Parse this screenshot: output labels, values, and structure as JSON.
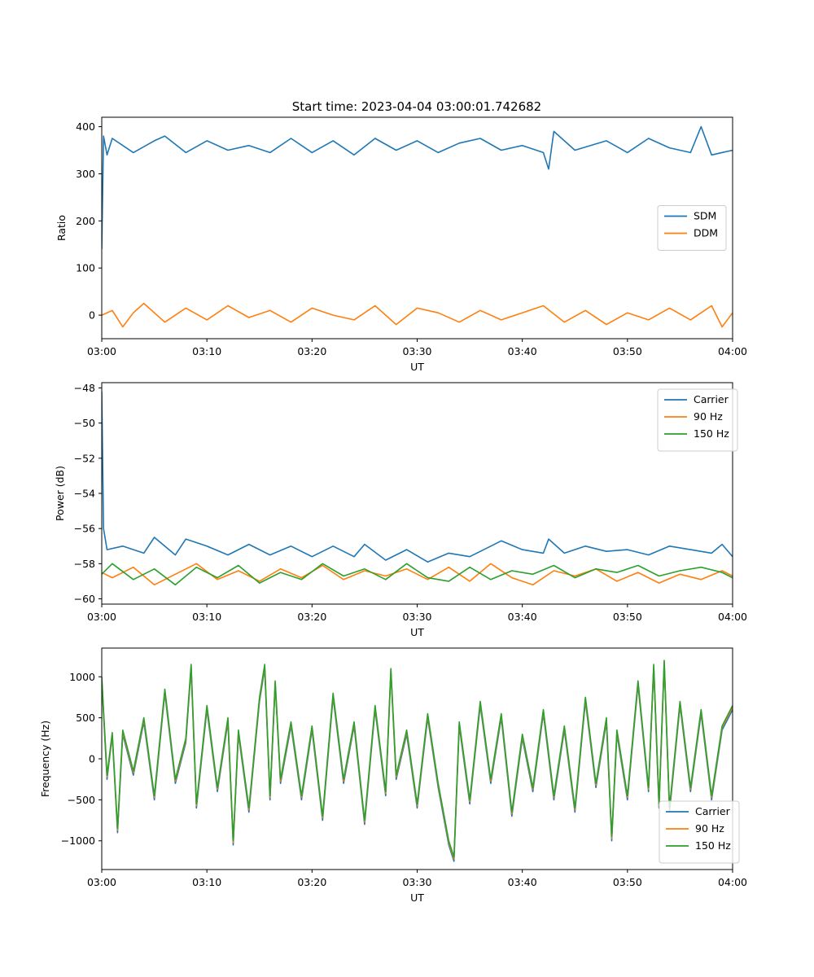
{
  "figure": {
    "title": "Start time: 2023-04-04 03:00:01.742682"
  },
  "colors": {
    "blue": "#1f77b4",
    "orange": "#ff7f0e",
    "green": "#2ca02c"
  },
  "chart_data": [
    {
      "type": "line",
      "title": "Start time: 2023-04-04 03:00:01.742682",
      "xlabel": "UT",
      "ylabel": "Ratio",
      "xlim": [
        "03:00",
        "04:00"
      ],
      "ylim": [
        -50,
        420
      ],
      "x_ticks": [
        "03:00",
        "03:10",
        "03:20",
        "03:30",
        "03:40",
        "03:50",
        "04:00"
      ],
      "y_ticks": [
        0,
        100,
        200,
        300,
        400
      ],
      "y_tick_labels": [
        "0",
        "100",
        "200",
        "300",
        "400"
      ],
      "legend": "center-right",
      "grid": false,
      "series": [
        {
          "name": "SDM",
          "color": "#1f77b4",
          "x": [
            "03:00",
            "03:00:10",
            "03:00:30",
            "03:01",
            "03:03",
            "03:05",
            "03:06",
            "03:08",
            "03:10",
            "03:12",
            "03:14",
            "03:16",
            "03:18",
            "03:20",
            "03:22",
            "03:24",
            "03:26",
            "03:28",
            "03:30",
            "03:32",
            "03:34",
            "03:36",
            "03:38",
            "03:40",
            "03:42",
            "03:42:30",
            "03:43",
            "03:45",
            "03:48",
            "03:50",
            "03:52",
            "03:54",
            "03:56",
            "03:57",
            "03:58",
            "04:00"
          ],
          "values": [
            140,
            380,
            340,
            375,
            345,
            370,
            380,
            345,
            370,
            350,
            360,
            345,
            375,
            345,
            370,
            340,
            375,
            350,
            370,
            345,
            365,
            375,
            350,
            360,
            345,
            310,
            390,
            350,
            370,
            345,
            375,
            355,
            345,
            400,
            340,
            350
          ]
        },
        {
          "name": "DDM",
          "color": "#ff7f0e",
          "x": [
            "03:00",
            "03:01",
            "03:02",
            "03:03",
            "03:04",
            "03:06",
            "03:08",
            "03:10",
            "03:12",
            "03:14",
            "03:16",
            "03:18",
            "03:20",
            "03:22",
            "03:24",
            "03:26",
            "03:28",
            "03:30",
            "03:32",
            "03:34",
            "03:36",
            "03:38",
            "03:40",
            "03:42",
            "03:44",
            "03:46",
            "03:48",
            "03:50",
            "03:52",
            "03:54",
            "03:56",
            "03:58",
            "03:59",
            "04:00"
          ],
          "values": [
            0,
            10,
            -25,
            5,
            25,
            -15,
            15,
            -10,
            20,
            -5,
            10,
            -15,
            15,
            0,
            -10,
            20,
            -20,
            15,
            5,
            -15,
            10,
            -10,
            5,
            20,
            -15,
            10,
            -20,
            5,
            -10,
            15,
            -10,
            20,
            -25,
            5
          ]
        }
      ]
    },
    {
      "type": "line",
      "title": "",
      "xlabel": "UT",
      "ylabel": "Power (dB)",
      "xlim": [
        "03:00",
        "04:00"
      ],
      "ylim": [
        -60.3,
        -47.7
      ],
      "x_ticks": [
        "03:00",
        "03:10",
        "03:20",
        "03:30",
        "03:40",
        "03:50",
        "04:00"
      ],
      "y_ticks": [
        -60,
        -58,
        -56,
        -54,
        -52,
        -50,
        -48
      ],
      "y_tick_labels": [
        "−60",
        "−58",
        "−56",
        "−54",
        "−52",
        "−50",
        "−48"
      ],
      "legend": "top-right",
      "grid": false,
      "series": [
        {
          "name": "Carrier",
          "color": "#1f77b4",
          "x": [
            "03:00",
            "03:00:10",
            "03:00:30",
            "03:02",
            "03:04",
            "03:05",
            "03:07",
            "03:08",
            "03:10",
            "03:12",
            "03:14",
            "03:16",
            "03:18",
            "03:20",
            "03:22",
            "03:24",
            "03:25",
            "03:27",
            "03:29",
            "03:31",
            "03:33",
            "03:35",
            "03:37",
            "03:38",
            "03:40",
            "03:42",
            "03:42:30",
            "03:44",
            "03:46",
            "03:48",
            "03:50",
            "03:52",
            "03:54",
            "03:56",
            "03:58",
            "03:59",
            "04:00"
          ],
          "values": [
            -48.2,
            -56.0,
            -57.2,
            -57.0,
            -57.4,
            -56.5,
            -57.5,
            -56.6,
            -57.0,
            -57.5,
            -56.9,
            -57.5,
            -57.0,
            -57.6,
            -57.0,
            -57.6,
            -56.9,
            -57.8,
            -57.2,
            -57.9,
            -57.4,
            -57.6,
            -57.0,
            -56.7,
            -57.2,
            -57.4,
            -56.6,
            -57.4,
            -57.0,
            -57.3,
            -57.2,
            -57.5,
            -57.0,
            -57.2,
            -57.4,
            -56.9,
            -57.6
          ]
        },
        {
          "name": "90 Hz",
          "color": "#ff7f0e",
          "x": [
            "03:00",
            "03:01",
            "03:03",
            "03:05",
            "03:07",
            "03:09",
            "03:11",
            "03:13",
            "03:15",
            "03:17",
            "03:19",
            "03:21",
            "03:23",
            "03:25",
            "03:27",
            "03:29",
            "03:31",
            "03:33",
            "03:35",
            "03:37",
            "03:39",
            "03:41",
            "03:43",
            "03:45",
            "03:47",
            "03:49",
            "03:51",
            "03:53",
            "03:55",
            "03:57",
            "03:59",
            "04:00"
          ],
          "values": [
            -58.5,
            -58.8,
            -58.2,
            -59.2,
            -58.6,
            -58.0,
            -58.9,
            -58.4,
            -59.0,
            -58.3,
            -58.8,
            -58.1,
            -58.9,
            -58.4,
            -58.7,
            -58.3,
            -58.9,
            -58.2,
            -59.0,
            -58.0,
            -58.8,
            -59.2,
            -58.4,
            -58.7,
            -58.3,
            -59.0,
            -58.5,
            -59.1,
            -58.6,
            -58.9,
            -58.4,
            -58.7
          ]
        },
        {
          "name": "150 Hz",
          "color": "#2ca02c",
          "x": [
            "03:00",
            "03:01",
            "03:03",
            "03:05",
            "03:07",
            "03:09",
            "03:11",
            "03:13",
            "03:15",
            "03:17",
            "03:19",
            "03:21",
            "03:23",
            "03:25",
            "03:27",
            "03:29",
            "03:31",
            "03:33",
            "03:35",
            "03:37",
            "03:39",
            "03:41",
            "03:43",
            "03:45",
            "03:47",
            "03:49",
            "03:51",
            "03:53",
            "03:55",
            "03:57",
            "03:59",
            "04:00"
          ],
          "values": [
            -58.6,
            -58.0,
            -58.9,
            -58.3,
            -59.2,
            -58.2,
            -58.8,
            -58.1,
            -59.1,
            -58.5,
            -58.9,
            -58.0,
            -58.7,
            -58.3,
            -58.9,
            -58.0,
            -58.8,
            -59.0,
            -58.2,
            -58.9,
            -58.4,
            -58.6,
            -58.1,
            -58.8,
            -58.3,
            -58.5,
            -58.1,
            -58.7,
            -58.4,
            -58.2,
            -58.5,
            -58.8
          ]
        }
      ]
    },
    {
      "type": "line",
      "title": "",
      "xlabel": "UT",
      "ylabel": "Frequency (Hz)",
      "xlim": [
        "03:00",
        "04:00"
      ],
      "ylim": [
        -1350,
        1350
      ],
      "x_ticks": [
        "03:00",
        "03:10",
        "03:20",
        "03:30",
        "03:40",
        "03:50",
        "04:00"
      ],
      "y_ticks": [
        -1000,
        -500,
        0,
        500,
        1000
      ],
      "y_tick_labels": [
        "−1000",
        "−500",
        "0",
        "500",
        "1000"
      ],
      "legend": "bottom-right",
      "grid": false,
      "series": [
        {
          "name": "Carrier",
          "color": "#1f77b4",
          "x": [
            "03:00",
            "03:00:30",
            "03:01",
            "03:01:30",
            "03:02",
            "03:03",
            "03:04",
            "03:05",
            "03:06",
            "03:07",
            "03:08",
            "03:08:30",
            "03:09",
            "03:10",
            "03:11",
            "03:12",
            "03:12:30",
            "03:13",
            "03:14",
            "03:15",
            "03:15:30",
            "03:16",
            "03:16:30",
            "03:17",
            "03:18",
            "03:19",
            "03:20",
            "03:21",
            "03:22",
            "03:23",
            "03:24",
            "03:25",
            "03:26",
            "03:27",
            "03:27:30",
            "03:28",
            "03:29",
            "03:30",
            "03:31",
            "03:32",
            "03:33",
            "03:33:30",
            "03:34",
            "03:35",
            "03:36",
            "03:37",
            "03:38",
            "03:39",
            "03:40",
            "03:41",
            "03:42",
            "03:43",
            "03:44",
            "03:45",
            "03:46",
            "03:47",
            "03:48",
            "03:48:30",
            "03:49",
            "03:50",
            "03:51",
            "03:52",
            "03:52:30",
            "03:53",
            "03:53:30",
            "03:54",
            "03:55",
            "03:56",
            "03:57",
            "03:58",
            "03:59",
            "04:00"
          ],
          "values": [
            950,
            -250,
            280,
            -900,
            300,
            -200,
            450,
            -500,
            800,
            -300,
            200,
            1100,
            -600,
            600,
            -400,
            450,
            -1050,
            300,
            -650,
            700,
            1100,
            -500,
            900,
            -300,
            400,
            -500,
            350,
            -750,
            750,
            -300,
            400,
            -800,
            600,
            -450,
            1050,
            -250,
            300,
            -600,
            500,
            -350,
            -1050,
            -1250,
            400,
            -550,
            650,
            -300,
            500,
            -700,
            250,
            -400,
            550,
            -500,
            350,
            -650,
            700,
            -350,
            450,
            -1000,
            300,
            -500,
            900,
            -400,
            1100,
            -600,
            1150,
            -650,
            650,
            -400,
            550,
            -500,
            350,
            600
          ]
        },
        {
          "name": "90 Hz",
          "color": "#ff7f0e",
          "x": [
            "03:00",
            "03:00:30",
            "03:01",
            "03:01:30",
            "03:02",
            "03:03",
            "03:04",
            "03:05",
            "03:06",
            "03:07",
            "03:08",
            "03:08:30",
            "03:09",
            "03:10",
            "03:11",
            "03:12",
            "03:12:30",
            "03:13",
            "03:14",
            "03:15",
            "03:15:30",
            "03:16",
            "03:16:30",
            "03:17",
            "03:18",
            "03:19",
            "03:20",
            "03:21",
            "03:22",
            "03:23",
            "03:24",
            "03:25",
            "03:26",
            "03:27",
            "03:27:30",
            "03:28",
            "03:29",
            "03:30",
            "03:31",
            "03:32",
            "03:33",
            "03:33:30",
            "03:34",
            "03:35",
            "03:36",
            "03:37",
            "03:38",
            "03:39",
            "03:40",
            "03:41",
            "03:42",
            "03:43",
            "03:44",
            "03:45",
            "03:46",
            "03:47",
            "03:48",
            "03:48:30",
            "03:49",
            "03:50",
            "03:51",
            "03:52",
            "03:52:30",
            "03:53",
            "03:53:30",
            "03:54",
            "03:55",
            "03:56",
            "03:57",
            "03:58",
            "03:59",
            "04:00"
          ],
          "values": [
            980,
            -220,
            300,
            -870,
            330,
            -170,
            480,
            -470,
            830,
            -270,
            230,
            1130,
            -570,
            630,
            -370,
            480,
            -1020,
            330,
            -620,
            730,
            1130,
            -470,
            930,
            -270,
            430,
            -470,
            380,
            -720,
            780,
            -270,
            430,
            -770,
            630,
            -420,
            1080,
            -220,
            330,
            -570,
            530,
            -320,
            -1020,
            -1220,
            430,
            -520,
            680,
            -270,
            530,
            -670,
            280,
            -370,
            580,
            -470,
            380,
            -620,
            730,
            -320,
            480,
            -970,
            330,
            -470,
            930,
            -370,
            1130,
            -570,
            1180,
            -620,
            680,
            -370,
            580,
            -470,
            380,
            630
          ]
        },
        {
          "name": "150 Hz",
          "color": "#2ca02c",
          "x": [
            "03:00",
            "03:00:30",
            "03:01",
            "03:01:30",
            "03:02",
            "03:03",
            "03:04",
            "03:05",
            "03:06",
            "03:07",
            "03:08",
            "03:08:30",
            "03:09",
            "03:10",
            "03:11",
            "03:12",
            "03:12:30",
            "03:13",
            "03:14",
            "03:15",
            "03:15:30",
            "03:16",
            "03:16:30",
            "03:17",
            "03:18",
            "03:19",
            "03:20",
            "03:21",
            "03:22",
            "03:23",
            "03:24",
            "03:25",
            "03:26",
            "03:27",
            "03:27:30",
            "03:28",
            "03:29",
            "03:30",
            "03:31",
            "03:32",
            "03:33",
            "03:33:30",
            "03:34",
            "03:35",
            "03:36",
            "03:37",
            "03:38",
            "03:39",
            "03:40",
            "03:41",
            "03:42",
            "03:43",
            "03:44",
            "03:45",
            "03:46",
            "03:47",
            "03:48",
            "03:48:30",
            "03:49",
            "03:50",
            "03:51",
            "03:52",
            "03:52:30",
            "03:53",
            "03:53:30",
            "03:54",
            "03:55",
            "03:56",
            "03:57",
            "03:58",
            "03:59",
            "04:00"
          ],
          "values": [
            1000,
            -200,
            320,
            -850,
            350,
            -150,
            500,
            -450,
            850,
            -250,
            250,
            1150,
            -550,
            650,
            -350,
            500,
            -1000,
            350,
            -600,
            750,
            1150,
            -450,
            950,
            -250,
            450,
            -450,
            400,
            -700,
            800,
            -250,
            450,
            -750,
            650,
            -400,
            1100,
            -200,
            350,
            -550,
            550,
            -300,
            -1000,
            -1200,
            450,
            -500,
            700,
            -250,
            550,
            -650,
            300,
            -350,
            600,
            -450,
            400,
            -600,
            750,
            -300,
            500,
            -950,
            350,
            -450,
            950,
            -350,
            1150,
            -550,
            1200,
            -600,
            700,
            -350,
            600,
            -450,
            400,
            650
          ]
        }
      ]
    }
  ]
}
